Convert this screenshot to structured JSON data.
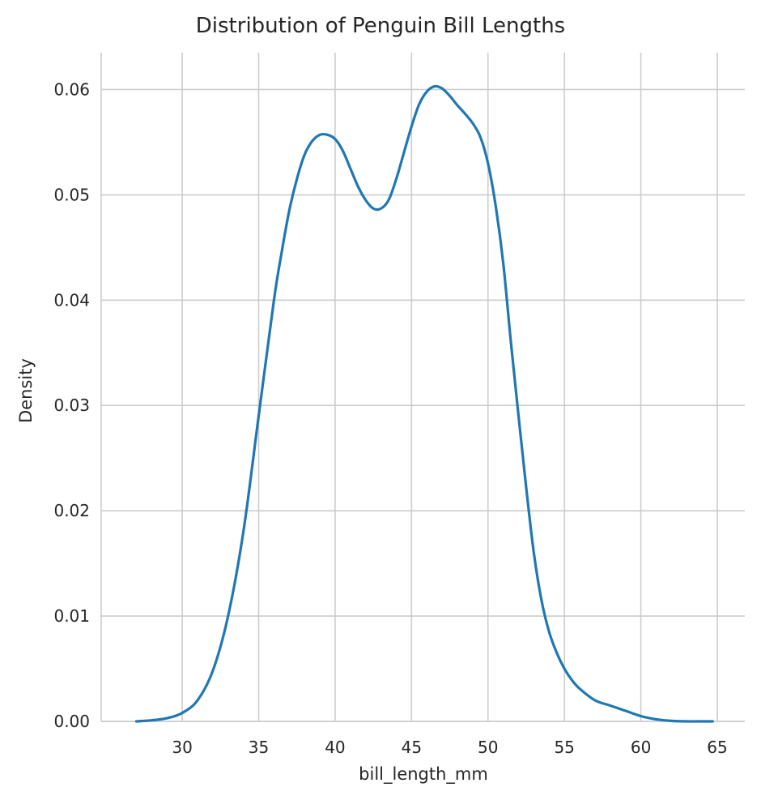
{
  "chart_data": {
    "type": "line",
    "title": "Distribution of Penguin Bill Lengths",
    "xlabel": "bill_length_mm",
    "ylabel": "Density",
    "xlim": [
      24.7,
      66.8
    ],
    "ylim": [
      0,
      0.0635
    ],
    "xticks": [
      30,
      35,
      40,
      45,
      50,
      55,
      60,
      65
    ],
    "xtick_labels": [
      "30",
      "35",
      "40",
      "45",
      "50",
      "55",
      "60",
      "65"
    ],
    "yticks": [
      0,
      0.01,
      0.02,
      0.03,
      0.04,
      0.05,
      0.06
    ],
    "ytick_labels": [
      "0.00",
      "0.01",
      "0.02",
      "0.03",
      "0.04",
      "0.05",
      "0.06"
    ],
    "grid": true,
    "series": [
      {
        "color": "#1f77b4",
        "x": [
          27.0,
          28.0,
          29.0,
          30.0,
          31.0,
          32.0,
          33.0,
          34.0,
          35.0,
          36.0,
          36.5,
          37.0,
          37.5,
          38.0,
          38.5,
          39.0,
          39.5,
          40.0,
          40.5,
          41.0,
          41.5,
          42.0,
          42.5,
          43.0,
          43.5,
          44.0,
          44.5,
          45.0,
          45.5,
          46.0,
          46.5,
          47.0,
          47.5,
          48.0,
          48.5,
          49.0,
          49.5,
          50.0,
          50.5,
          51.0,
          51.5,
          52.0,
          52.5,
          53.0,
          53.5,
          54.0,
          54.5,
          55.0,
          55.5,
          56.0,
          57.0,
          58.0,
          59.0,
          60.0,
          61.0,
          62.0,
          63.0,
          64.0,
          64.7
        ],
        "y": [
          0.0,
          0.0001,
          0.0003,
          0.0008,
          0.002,
          0.0048,
          0.01,
          0.018,
          0.029,
          0.04,
          0.0445,
          0.0485,
          0.0515,
          0.0538,
          0.0551,
          0.0557,
          0.0557,
          0.0553,
          0.0542,
          0.0525,
          0.0508,
          0.0495,
          0.0487,
          0.0487,
          0.0495,
          0.0515,
          0.054,
          0.0565,
          0.0586,
          0.0598,
          0.0603,
          0.0601,
          0.0594,
          0.0585,
          0.0577,
          0.0568,
          0.0555,
          0.053,
          0.049,
          0.0435,
          0.036,
          0.029,
          0.0222,
          0.016,
          0.0115,
          0.0085,
          0.0065,
          0.005,
          0.0039,
          0.0031,
          0.002,
          0.0015,
          0.001,
          0.0005,
          0.0002,
          5e-05,
          0.0,
          0.0,
          0.0
        ]
      }
    ]
  }
}
